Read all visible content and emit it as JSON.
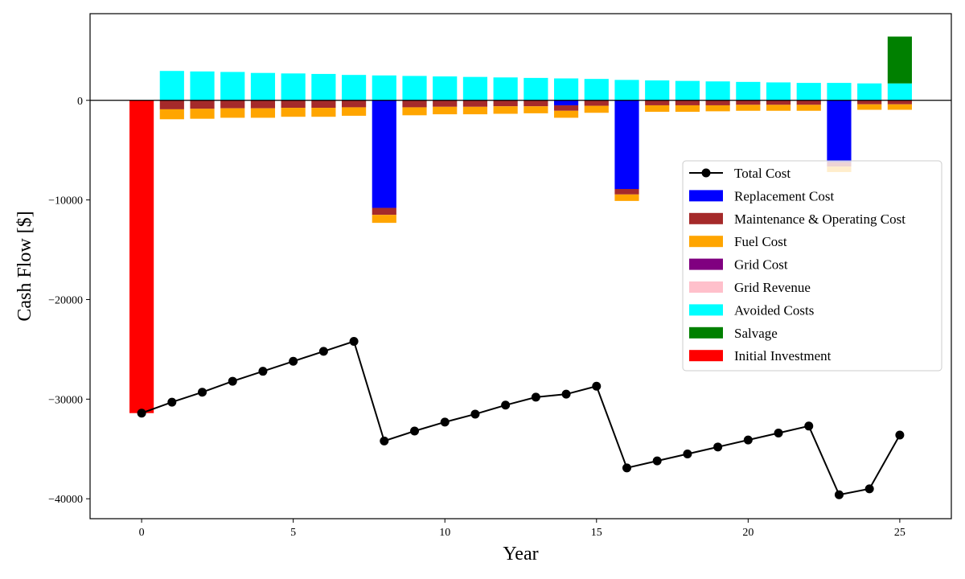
{
  "chart_data": {
    "type": "bar",
    "xlabel": "Year",
    "ylabel": "Cash Flow [$]",
    "xlim": [
      -1.7,
      26.7
    ],
    "ylim": [
      -42000,
      8700
    ],
    "xticks": [
      0,
      5,
      10,
      15,
      20,
      25
    ],
    "yticks": [
      -40000,
      -30000,
      -20000,
      -10000,
      0
    ],
    "ytick_labels": [
      "−40000",
      "−30000",
      "−20000",
      "−10000",
      "0"
    ],
    "grid": false,
    "legend_position": "center-right",
    "x": [
      0,
      1,
      2,
      3,
      4,
      5,
      6,
      7,
      8,
      9,
      10,
      11,
      12,
      13,
      14,
      15,
      16,
      17,
      18,
      19,
      20,
      21,
      22,
      23,
      24,
      25
    ],
    "series": [
      {
        "name": "Total Cost",
        "kind": "line",
        "color": "#000000",
        "values": [
          -31400,
          -30300,
          -29300,
          -28200,
          -27200,
          -26200,
          -25200,
          -24200,
          -34200,
          -33200,
          -32300,
          -31500,
          -30600,
          -29800,
          -29500,
          -28700,
          -36900,
          -36200,
          -35500,
          -34800,
          -34100,
          -33400,
          -32700,
          -39600,
          -39000,
          -33600
        ]
      },
      {
        "name": "Replacement Cost",
        "kind": "bar",
        "color": "#0000ff",
        "values": [
          0,
          0,
          0,
          0,
          0,
          0,
          0,
          0,
          -10800,
          0,
          0,
          0,
          0,
          0,
          -500,
          0,
          -8900,
          0,
          0,
          0,
          0,
          0,
          0,
          -6200,
          0,
          0
        ]
      },
      {
        "name": "Maintenance & Operating Cost",
        "kind": "bar",
        "color": "#a52a2a",
        "values": [
          0,
          -900,
          -850,
          -800,
          -800,
          -750,
          -750,
          -700,
          -700,
          -700,
          -650,
          -650,
          -600,
          -600,
          -550,
          -550,
          -550,
          -500,
          -500,
          -500,
          -450,
          -450,
          -450,
          -450,
          -400,
          -400
        ]
      },
      {
        "name": "Fuel Cost",
        "kind": "bar",
        "color": "#ffa500",
        "values": [
          0,
          -1000,
          -1000,
          -950,
          -950,
          -900,
          -900,
          -850,
          -800,
          -800,
          -750,
          -750,
          -750,
          -700,
          -700,
          -700,
          -650,
          -650,
          -650,
          -600,
          -600,
          -600,
          -600,
          -550,
          -550,
          -550
        ]
      },
      {
        "name": "Grid Cost",
        "kind": "bar",
        "color": "#800080",
        "values": [
          0,
          0,
          0,
          0,
          0,
          0,
          0,
          0,
          0,
          0,
          0,
          0,
          0,
          0,
          0,
          0,
          0,
          0,
          0,
          0,
          0,
          0,
          0,
          0,
          0,
          0
        ]
      },
      {
        "name": "Grid Revenue",
        "kind": "bar",
        "color": "#ffc0cb",
        "values": [
          0,
          0,
          0,
          0,
          0,
          0,
          0,
          0,
          0,
          0,
          0,
          0,
          0,
          0,
          0,
          0,
          0,
          0,
          0,
          0,
          0,
          0,
          0,
          0,
          0,
          0
        ]
      },
      {
        "name": "Avoided Costs",
        "kind": "bar",
        "color": "#00ffff",
        "values": [
          0,
          2950,
          2900,
          2850,
          2750,
          2700,
          2650,
          2550,
          2500,
          2450,
          2400,
          2350,
          2300,
          2250,
          2200,
          2150,
          2050,
          2000,
          1950,
          1900,
          1850,
          1800,
          1750,
          1750,
          1700,
          1700
        ]
      },
      {
        "name": "Salvage",
        "kind": "bar",
        "color": "#008000",
        "values": [
          0,
          0,
          0,
          0,
          0,
          0,
          0,
          0,
          0,
          0,
          0,
          0,
          0,
          0,
          0,
          0,
          0,
          0,
          0,
          0,
          0,
          0,
          0,
          0,
          0,
          4700
        ]
      },
      {
        "name": "Initial Investment",
        "kind": "bar",
        "color": "#ff0000",
        "values": [
          -31400,
          0,
          0,
          0,
          0,
          0,
          0,
          0,
          0,
          0,
          0,
          0,
          0,
          0,
          0,
          0,
          0,
          0,
          0,
          0,
          0,
          0,
          0,
          0,
          0,
          0
        ]
      }
    ]
  }
}
